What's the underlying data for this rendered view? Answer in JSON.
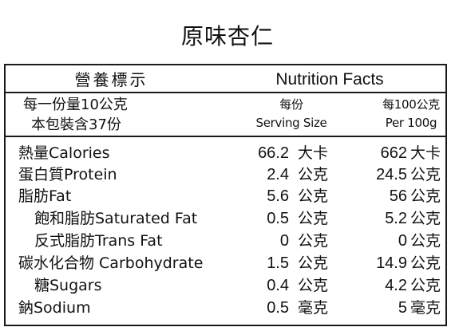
{
  "product": {
    "title": "原味杏仁"
  },
  "label": {
    "header_zh": "營養標示",
    "header_en": "Nutrition Facts",
    "serving_size": "每一份量10公克",
    "servings_per_package": "本包裝含37份",
    "col_per_serving_zh": "每份",
    "col_per_serving_en": "Serving Size",
    "col_per_100_zh": "每100公克",
    "col_per_100_en": "Per 100g",
    "nutrients": [
      {
        "name": "熱量Calories",
        "per_serving": "66.2",
        "unit_serving": "大卡",
        "per_100g": "662",
        "unit_100g": "大卡"
      },
      {
        "name": "蛋白質Protein",
        "per_serving": "2.4",
        "unit_serving": "公克",
        "per_100g": "24.5",
        "unit_100g": "公克"
      },
      {
        "name": "脂肪Fat",
        "per_serving": "5.6",
        "unit_serving": "公克",
        "per_100g": "56",
        "unit_100g": "公克"
      },
      {
        "name": "飽和脂肪Saturated Fat",
        "per_serving": "0.5",
        "unit_serving": "公克",
        "per_100g": "5.2",
        "unit_100g": "公克"
      },
      {
        "name": "反式脂肪Trans Fat",
        "per_serving": "0",
        "unit_serving": "公克",
        "per_100g": "0",
        "unit_100g": "公克"
      },
      {
        "name": "碳水化合物 Carbohydrate",
        "per_serving": "1.5",
        "unit_serving": "公克",
        "per_100g": "14.9",
        "unit_100g": "公克"
      },
      {
        "name": "糖Sugars",
        "per_serving": "0.4",
        "unit_serving": "公克",
        "per_100g": "4.2",
        "unit_100g": "公克"
      },
      {
        "name": "鈉Sodium",
        "per_serving": "0.5",
        "unit_serving": "毫克",
        "per_100g": "5",
        "unit_100g": "毫克"
      }
    ]
  }
}
